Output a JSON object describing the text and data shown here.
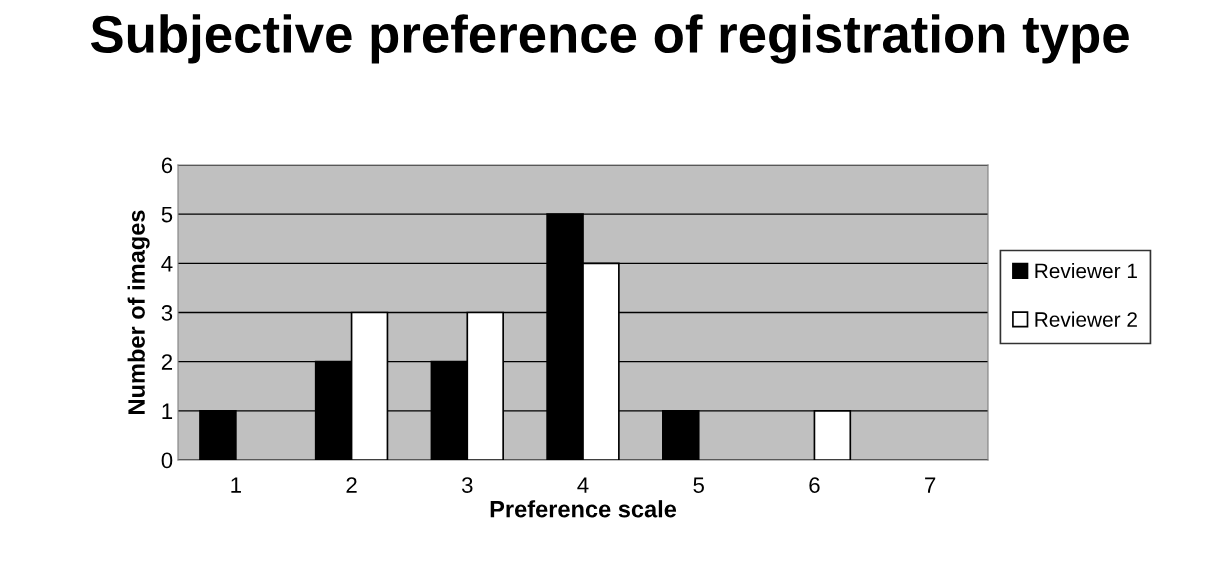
{
  "chart_data": {
    "type": "bar",
    "title": "Subjective preference of registration type",
    "xlabel": "Preference scale",
    "ylabel": "Number of images",
    "categories": [
      "1",
      "2",
      "3",
      "4",
      "5",
      "6",
      "7"
    ],
    "series": [
      {
        "name": "Reviewer 1",
        "color": "#000000",
        "values": [
          1,
          2,
          2,
          5,
          1,
          0,
          0
        ]
      },
      {
        "name": "Reviewer 2",
        "color": "#ffffff",
        "values": [
          0,
          3,
          3,
          4,
          0,
          1,
          0
        ]
      }
    ],
    "ylim": [
      0,
      6
    ],
    "yticks": [
      0,
      1,
      2,
      3,
      4,
      5,
      6
    ],
    "grid": "y",
    "legend": "right"
  }
}
